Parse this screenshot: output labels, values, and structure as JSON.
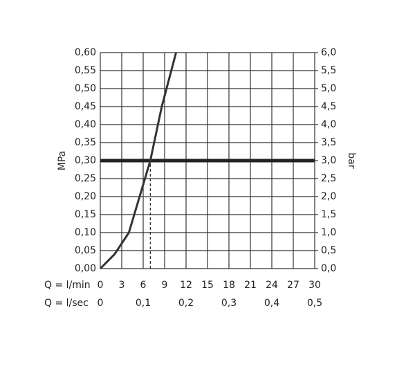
{
  "chart_data": {
    "type": "line",
    "x": [
      0,
      2,
      4,
      5.5,
      7,
      8.6,
      10.6
    ],
    "values": [
      0,
      0.04,
      0.1,
      0.2,
      0.3,
      0.45,
      0.6
    ],
    "color": "#333333",
    "xlabel": "Q = l/min",
    "x2label": "Q = l/sec",
    "ylabel": "MPa",
    "y2label": "bar",
    "xlim": [
      0,
      30
    ],
    "xticks": [
      0,
      3,
      6,
      9,
      12,
      15,
      18,
      21,
      24,
      27,
      30
    ],
    "x2lim": [
      0,
      0.5
    ],
    "x2ticks": [
      0,
      {
        "value": 0.1,
        "label": "0,1"
      },
      {
        "value": 0.2,
        "label": "0,2"
      },
      {
        "value": 0.3,
        "label": "0,3"
      },
      {
        "value": 0.4,
        "label": "0,4"
      },
      {
        "value": 0.5,
        "label": "0,5"
      }
    ],
    "ylim": [
      0,
      0.6
    ],
    "yticks": [
      {
        "value": 0,
        "label": "0,00"
      },
      {
        "value": 0.05,
        "label": "0,05"
      },
      {
        "value": 0.1,
        "label": "0,10"
      },
      {
        "value": 0.15,
        "label": "0,15"
      },
      {
        "value": 0.2,
        "label": "0,20"
      },
      {
        "value": 0.25,
        "label": "0,25"
      },
      {
        "value": 0.3,
        "label": "0,30"
      },
      {
        "value": 0.35,
        "label": "0,35"
      },
      {
        "value": 0.4,
        "label": "0,40"
      },
      {
        "value": 0.45,
        "label": "0,45"
      },
      {
        "value": 0.5,
        "label": "0,50"
      },
      {
        "value": 0.55,
        "label": "0,55"
      },
      {
        "value": 0.6,
        "label": "0,60"
      }
    ],
    "y2lim": [
      0,
      6
    ],
    "y2ticks": [
      {
        "value": 0,
        "label": "0,0"
      },
      {
        "value": 0.5,
        "label": "0,5"
      },
      {
        "value": 1,
        "label": "1,0"
      },
      {
        "value": 1.5,
        "label": "1,5"
      },
      {
        "value": 2,
        "label": "2,0"
      },
      {
        "value": 2.5,
        "label": "2,5"
      },
      {
        "value": 3,
        "label": "3,0"
      },
      {
        "value": 3.5,
        "label": "3,5"
      },
      {
        "value": 4,
        "label": "4,0"
      },
      {
        "value": 4.5,
        "label": "4,5"
      },
      {
        "value": 5,
        "label": "5,0"
      },
      {
        "value": 5.5,
        "label": "5,5"
      },
      {
        "value": 6,
        "label": "6,0"
      }
    ],
    "grid": true,
    "reference_lines": [
      {
        "axis": "y",
        "value": 0.3,
        "style": "solid"
      },
      {
        "axis": "x",
        "value": 7,
        "to": 0.3,
        "style": "dashed"
      }
    ]
  }
}
